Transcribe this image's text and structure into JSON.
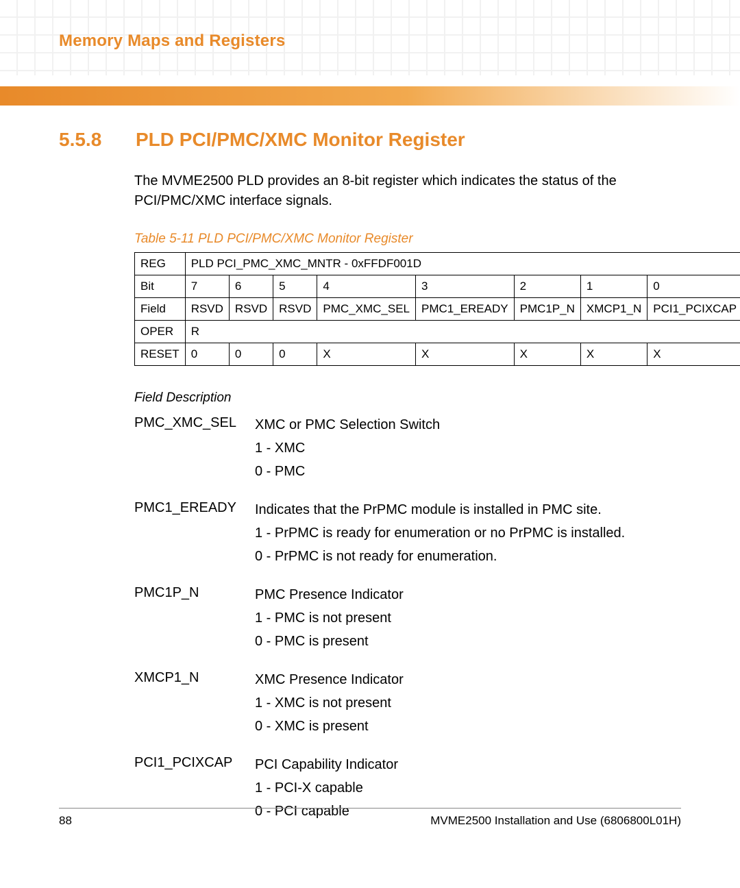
{
  "colors": {
    "accent": "#e88a2a",
    "text": "#000000",
    "square_grid": "#f0f0f0",
    "bar_gradient_start": "#e88a2a",
    "bar_gradient_mid": "#f2a94e",
    "bar_gradient_end": "#ffffff",
    "rule": "#888888"
  },
  "header": {
    "chapter_title": "Memory Maps and Registers"
  },
  "section": {
    "number": "5.5.8",
    "title": "PLD PCI/PMC/XMC Monitor Register",
    "intro": "The MVME2500 PLD provides an 8-bit register which indicates the status of the PCI/PMC/XMC interface signals.",
    "table_caption": "Table 5-11 PLD PCI/PMC/XMC Monitor Register"
  },
  "table": {
    "reg_label": "REG",
    "reg_value": "PLD PCI_PMC_XMC_MNTR - 0xFFDF001D",
    "bit_label": "Bit",
    "bits": [
      "7",
      "6",
      "5",
      "4",
      "3",
      "2",
      "1",
      "0"
    ],
    "field_label": "Field",
    "fields": [
      "RSVD",
      "RSVD",
      "RSVD",
      "PMC_XMC_SEL",
      "PMC1_EREADY",
      "PMC1P_N",
      "XMCP1_N",
      "PCI1_PCIXCAP"
    ],
    "oper_label": "OPER",
    "oper_value": "R",
    "reset_label": "RESET",
    "resets": [
      "0",
      "0",
      "0",
      "X",
      "X",
      "X",
      "X",
      "X"
    ]
  },
  "field_description": {
    "heading": "Field Description",
    "items": [
      {
        "name": "PMC_XMC_SEL",
        "lines": [
          "XMC or PMC Selection Switch",
          "1 - XMC",
          "0 - PMC"
        ]
      },
      {
        "name": "PMC1_EREADY",
        "lines": [
          "Indicates that the PrPMC module is installed in PMC site.",
          "1 - PrPMC is ready for enumeration or no PrPMC is installed.",
          "0 - PrPMC is not ready for enumeration."
        ]
      },
      {
        "name": "PMC1P_N",
        "lines": [
          "PMC Presence Indicator",
          "1 - PMC is not present",
          "0 - PMC is present"
        ]
      },
      {
        "name": "XMCP1_N",
        "lines": [
          "XMC Presence Indicator",
          "1 - XMC is not present",
          "0 - XMC is present"
        ]
      },
      {
        "name": "PCI1_PCIXCAP",
        "lines": [
          "PCI Capability Indicator",
          "1 - PCI-X capable",
          "0 - PCI capable"
        ]
      }
    ]
  },
  "footer": {
    "page_number": "88",
    "doc_title": "MVME2500 Installation and Use (6806800L01H)"
  }
}
